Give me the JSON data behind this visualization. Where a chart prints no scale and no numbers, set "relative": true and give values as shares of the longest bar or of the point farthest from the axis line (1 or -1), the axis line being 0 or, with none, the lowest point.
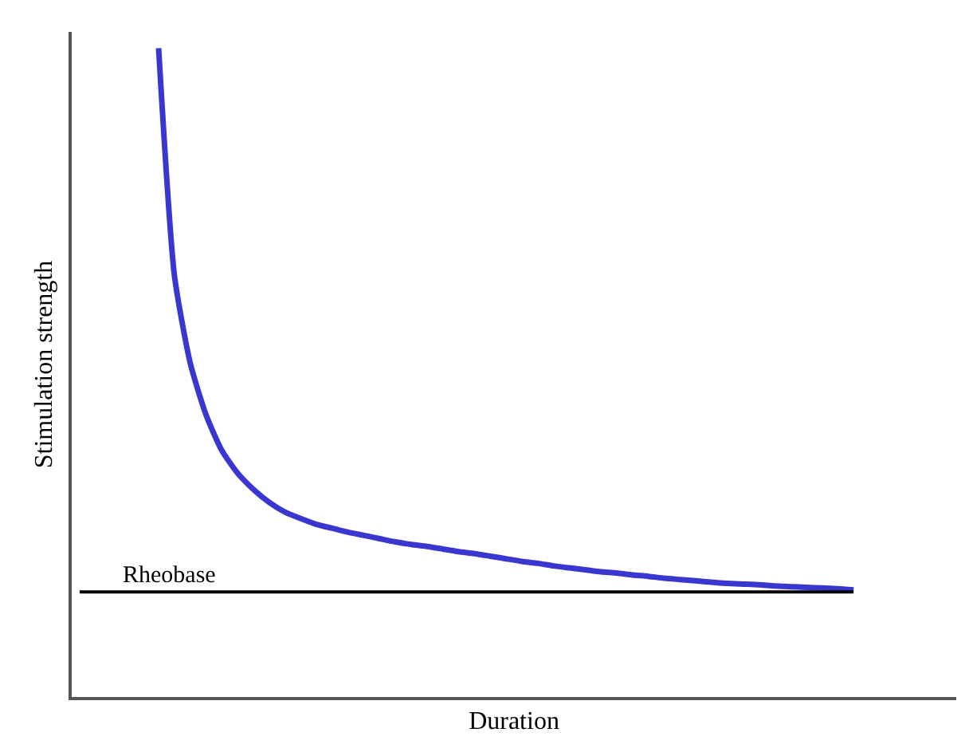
{
  "chart_data": {
    "type": "line",
    "relative": true,
    "xlabel": "Duration",
    "ylabel": "Stimulation strength",
    "categories": [
      null,
      null,
      null,
      null,
      null,
      null,
      null,
      null,
      null,
      null,
      null,
      null,
      null,
      null,
      null,
      null,
      null,
      null,
      null,
      null,
      null,
      null,
      null,
      null,
      null,
      null,
      null,
      null,
      null,
      null,
      null,
      null,
      null,
      null,
      null,
      null,
      null,
      null,
      null,
      null,
      null,
      null,
      null,
      null,
      null,
      null,
      null,
      null,
      null,
      null,
      null,
      null,
      null,
      null,
      null,
      null
    ],
    "series": [
      {
        "color": "#3a37d0",
        "values": [
          null,
          null,
          null,
          null,
          null,
          1.0,
          0.65,
          0.515,
          0.435,
          0.38,
          0.345,
          0.32,
          0.3,
          0.285,
          0.275,
          0.266,
          0.26,
          0.254,
          0.249,
          0.244,
          0.239,
          0.235,
          0.232,
          0.228,
          0.224,
          0.221,
          0.217,
          0.213,
          0.209,
          0.206,
          0.202,
          0.199,
          0.196,
          0.193,
          0.191,
          0.188,
          0.186,
          0.183,
          0.181,
          0.179,
          0.177,
          0.175,
          0.174,
          0.173,
          0.171,
          0.17,
          0.169,
          0.168,
          0.167,
          0.165,
          null,
          null,
          null,
          null,
          null,
          null
        ]
      }
    ],
    "ref_lines": [
      {
        "axis": "y",
        "value": 0.162,
        "label": "Rheobase",
        "color": "#000000"
      }
    ],
    "legend": false,
    "marker": "none",
    "line_style": "solid",
    "tick_labels": false
  }
}
